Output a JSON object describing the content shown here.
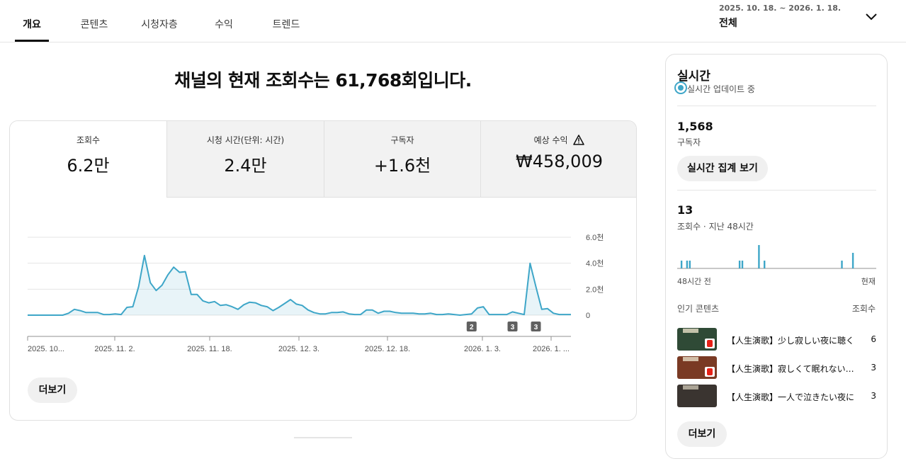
{
  "tabs": [
    "개요",
    "콘텐츠",
    "시청자층",
    "수익",
    "트렌드"
  ],
  "date_range": "2025. 10. 18. ~ 2026. 1. 18.",
  "date_scope": "전체",
  "headline": "채널의 현재 조회수는 61,768회입니다.",
  "metrics": [
    {
      "label": "조회수",
      "value": "6.2만"
    },
    {
      "label": "시청 시간(단위: 시간)",
      "value": "2.4만"
    },
    {
      "label": "구독자",
      "value": "+1.6천"
    },
    {
      "label": "예상 수익",
      "value": "₩458,009"
    }
  ],
  "more_label": "더보기",
  "chart_data": {
    "type": "area",
    "x_tick_labels": [
      "2025. 10...",
      "2025. 11. 2.",
      "2025. 11. 18.",
      "2025. 12. 3.",
      "2025. 12. 18.",
      "2026. 1. 3.",
      "2026. 1. ..."
    ],
    "y_tick_labels": [
      "6.0천",
      "4.0천",
      "2.0천",
      "0"
    ],
    "ylim": [
      0,
      6000
    ],
    "values": [
      0,
      0,
      0,
      0,
      0,
      0,
      0,
      150,
      450,
      350,
      200,
      200,
      200,
      50,
      50,
      100,
      50,
      600,
      650,
      2200,
      4600,
      2500,
      1900,
      2300,
      3100,
      3700,
      3300,
      3350,
      1600,
      1600,
      1100,
      950,
      1050,
      750,
      800,
      650,
      450,
      800,
      1000,
      950,
      750,
      650,
      350,
      600,
      900,
      1200,
      850,
      750,
      400,
      200,
      100,
      100,
      200,
      200,
      250,
      100,
      50,
      50,
      400,
      400,
      150,
      300,
      300,
      200,
      150,
      150,
      150,
      100,
      100,
      150,
      50,
      50,
      100,
      50,
      0,
      50,
      100,
      550,
      650,
      50,
      50,
      50,
      50,
      250,
      150,
      50,
      4000,
      2200,
      450,
      500,
      150,
      50,
      50,
      50
    ],
    "markers": [
      {
        "label": "2",
        "index": 76
      },
      {
        "label": "3",
        "index": 83
      },
      {
        "label": "3",
        "index": 87
      }
    ],
    "color": "#3ea6c8"
  },
  "realtime": {
    "title": "실시간",
    "status": "실시간 업데이트 중",
    "subscribers": "1,568",
    "subscribers_label": "구독자",
    "aggregate_button": "실시간 집계 보기",
    "views": "13",
    "views_label": "조회수 · 지난 48시간",
    "axis_start": "48시간 전",
    "axis_end": "현재",
    "hourly": [
      0,
      1,
      0,
      1,
      1,
      0,
      0,
      0,
      0,
      0,
      0,
      0,
      0,
      0,
      0,
      0,
      0,
      0,
      0,
      0,
      0,
      0,
      1,
      1,
      0,
      0,
      0,
      0,
      0,
      3,
      0,
      1,
      0,
      0,
      0,
      0,
      0,
      0,
      0,
      0,
      0,
      0,
      0,
      0,
      0,
      0,
      0,
      0,
      0,
      0,
      0,
      0,
      0,
      0,
      0,
      0,
      0,
      0,
      0,
      1,
      0,
      0,
      0,
      2,
      0,
      0,
      0,
      0,
      0,
      0,
      0,
      0
    ],
    "popular_label": "인기 콘텐츠",
    "views_col_label": "조회수",
    "videos": [
      {
        "title": "【人生演歌】少し寂しい夜に聴く",
        "views": "6",
        "thumb_color": "#2f4a36"
      },
      {
        "title": "【人生演歌】寂しくて眠れない夜に",
        "views": "3",
        "thumb_color": "#7a3a24"
      },
      {
        "title": "【人生演歌】一人で泣きたい夜に",
        "views": "3",
        "thumb_color": "#3a3430"
      }
    ],
    "more_label": "더보기"
  }
}
